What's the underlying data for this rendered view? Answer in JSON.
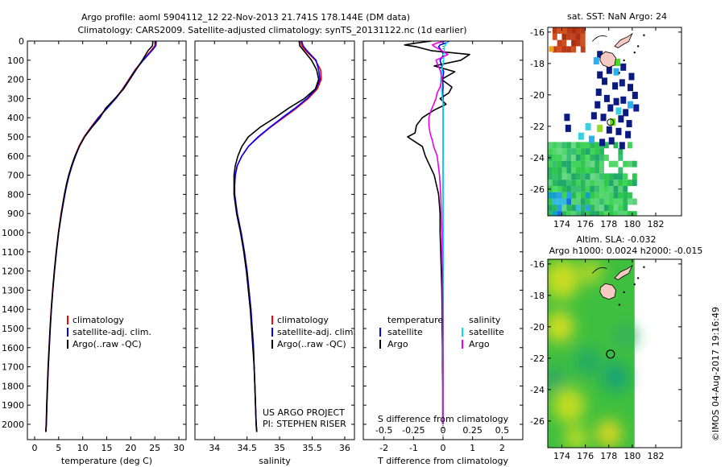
{
  "header": {
    "title_line1": "Argo profile: aoml 5904112_12 22-Nov-2013 21.741S 178.144E (DM data)",
    "title_line2": "Climatology: CARS2009. Satellite-adjusted climatology: synTS_20131122.nc (1d earlier)"
  },
  "legend": {
    "climatology": "climatology",
    "satellite_clim": "satellite-adj. clim.",
    "argo": "Argo(..raw -QC)",
    "temperature": "temperature",
    "salinity": "salinity",
    "satellite": "satellite",
    "argo_short": "Argo"
  },
  "credits": {
    "project": "US ARGO PROJECT",
    "pi": "PI: STEPHEN RISER",
    "stamp": "©IMOS 04-Aug-2017 19:16:49"
  },
  "maps": {
    "sst_title": "sat. SST: NaN Argo: 24",
    "sla_title": "Altim. SLA: -0.032",
    "sla_subtitle": "Argo h1000: 0.0024 h2000: -0.015",
    "xticks": [
      "174",
      "176",
      "178",
      "180",
      "182"
    ],
    "yticks": [
      "-16",
      "-18",
      "-20",
      "-22",
      "-24",
      "-26"
    ],
    "xrange": [
      172.8,
      184.2
    ],
    "yrange": [
      -27.7,
      -15.7
    ],
    "float_position": [
      178.144,
      -21.741
    ]
  },
  "colors": {
    "climatology": "#ff0000",
    "satellite": "#0000ff",
    "argo": "#000000",
    "s_satellite": "#00e5ee",
    "s_argo": "#ee00ee"
  },
  "chart_data": [
    {
      "type": "line",
      "panel": "temperature",
      "xlabel": "temperature (deg C)",
      "ylabel": "",
      "xlim": [
        -1.5,
        31.5
      ],
      "ylim": [
        2080,
        0
      ],
      "xticks": [
        0,
        5,
        10,
        15,
        20,
        25,
        30
      ],
      "yticks": [
        0,
        100,
        200,
        300,
        400,
        500,
        600,
        700,
        800,
        900,
        1000,
        1100,
        1200,
        1300,
        1400,
        1500,
        1600,
        1700,
        1800,
        1900,
        2000
      ],
      "depth": [
        0,
        25,
        50,
        100,
        150,
        200,
        250,
        300,
        350,
        400,
        450,
        500,
        550,
        600,
        650,
        700,
        750,
        800,
        900,
        1000,
        1100,
        1200,
        1300,
        1400,
        1500,
        1600,
        1700,
        1800,
        1900,
        2000,
        2040
      ],
      "series": [
        {
          "name": "climatology",
          "values": [
            25.1,
            25.0,
            24.2,
            22.5,
            20.9,
            19.6,
            18.3,
            16.8,
            15.0,
            13.2,
            11.7,
            10.3,
            9.2,
            8.4,
            7.7,
            7.1,
            6.6,
            6.2,
            5.5,
            4.95,
            4.5,
            4.1,
            3.75,
            3.45,
            3.2,
            3.0,
            2.8,
            2.65,
            2.5,
            2.4,
            2.3
          ]
        },
        {
          "name": "satellite-adj. clim.",
          "values": [
            25.3,
            25.2,
            24.4,
            22.6,
            21.0,
            19.7,
            18.4,
            16.9,
            15.1,
            13.3,
            11.8,
            10.4,
            9.3,
            8.5,
            7.8,
            7.2,
            6.7,
            6.3,
            5.6,
            5.0,
            4.55,
            4.15,
            3.8,
            3.5,
            3.25,
            3.05,
            2.85,
            2.7,
            2.55,
            2.45,
            2.35
          ]
        },
        {
          "name": "Argo(..raw -QC)",
          "values": [
            24.6,
            24.5,
            23.6,
            22.4,
            21.1,
            19.8,
            18.5,
            16.7,
            14.8,
            13.6,
            11.9,
            10.4,
            9.3,
            8.4,
            7.7,
            7.1,
            6.6,
            6.2,
            5.55,
            4.97,
            4.5,
            4.12,
            3.78,
            3.48,
            3.22,
            3.02,
            2.83,
            2.67,
            2.53,
            2.42,
            2.33
          ]
        }
      ]
    },
    {
      "type": "line",
      "panel": "salinity",
      "xlabel": "salinity",
      "ylabel": "",
      "xlim": [
        33.7,
        36.15
      ],
      "ylim": [
        2080,
        0
      ],
      "xticks": [
        34,
        34.5,
        35,
        35.5,
        36
      ],
      "xticklabels": [
        "34",
        "34.5",
        "35",
        "35.5",
        "36"
      ],
      "depth": [
        0,
        25,
        50,
        100,
        150,
        200,
        250,
        300,
        350,
        400,
        450,
        500,
        550,
        600,
        650,
        700,
        750,
        800,
        900,
        1000,
        1100,
        1200,
        1300,
        1400,
        1500,
        1600,
        1700,
        1800,
        1900,
        2000,
        2040
      ],
      "series": [
        {
          "name": "climatology",
          "values": [
            35.32,
            35.34,
            35.4,
            35.55,
            35.63,
            35.64,
            35.58,
            35.44,
            35.26,
            35.06,
            34.86,
            34.68,
            34.52,
            34.42,
            34.35,
            34.32,
            34.31,
            34.31,
            34.35,
            34.41,
            34.46,
            34.5,
            34.53,
            34.56,
            34.58,
            34.6,
            34.61,
            34.62,
            34.63,
            34.64,
            34.65
          ]
        },
        {
          "name": "satellite-adj. clim.",
          "values": [
            35.34,
            35.36,
            35.42,
            35.56,
            35.6,
            35.62,
            35.56,
            35.42,
            35.24,
            35.04,
            34.85,
            34.67,
            34.52,
            34.42,
            34.35,
            34.32,
            34.31,
            34.31,
            34.35,
            34.41,
            34.46,
            34.5,
            34.53,
            34.56,
            34.58,
            34.6,
            34.61,
            34.62,
            34.63,
            34.64,
            34.65
          ]
        },
        {
          "name": "Argo(..raw -QC)",
          "values": [
            35.3,
            35.31,
            35.37,
            35.49,
            35.57,
            35.6,
            35.55,
            35.38,
            35.14,
            34.93,
            34.7,
            34.52,
            34.42,
            34.36,
            34.32,
            34.3,
            34.3,
            34.3,
            34.34,
            34.4,
            34.45,
            34.49,
            34.52,
            34.55,
            34.57,
            34.59,
            34.61,
            34.62,
            34.63,
            34.64,
            34.65
          ]
        }
      ]
    },
    {
      "type": "line",
      "panel": "difference",
      "xlabel": "T difference from climatology",
      "x2label": "S difference from climatology",
      "ylabel": "",
      "xlim": [
        -2.7,
        2.7
      ],
      "x2lim": [
        -0.675,
        0.675
      ],
      "ylim": [
        2080,
        0
      ],
      "xticks": [
        -2,
        -1,
        0,
        1,
        2
      ],
      "x2ticks": [
        -0.5,
        -0.25,
        0,
        0.25,
        0.5
      ],
      "x2ticklabels": [
        "-0.5",
        "-0.25",
        "0",
        "0.25",
        "0.5"
      ],
      "depth": [
        0,
        10,
        20,
        30,
        50,
        70,
        100,
        130,
        160,
        200,
        240,
        270,
        300,
        330,
        360,
        400,
        440,
        480,
        500,
        520,
        550,
        600,
        700,
        800,
        900,
        1000,
        1100,
        1200,
        1300,
        1400,
        1500,
        1600,
        1700,
        1800,
        1900,
        2000
      ],
      "series": [
        {
          "name": "temperature satellite",
          "values": [
            0.2,
            0.1,
            -0.1,
            -0.15,
            -0.05,
            0.02,
            -0.1,
            -0.05,
            0.02,
            -0.01,
            0.0,
            -0.01,
            0.0,
            0.0,
            0.0,
            0.0,
            0.0,
            0.0,
            0.0,
            0.0,
            0.0,
            0.0,
            0.0,
            0.0,
            0.0,
            0.0,
            0.0,
            0.0,
            0.0,
            0.0,
            0.0,
            0.0,
            0.0,
            0.0,
            0.0,
            0.0
          ]
        },
        {
          "name": "temperature Argo",
          "values": [
            -0.4,
            -0.9,
            -1.3,
            -0.9,
            -0.4,
            0.9,
            0.6,
            -0.3,
            0.4,
            -0.05,
            0.3,
            0.2,
            -0.1,
            0.1,
            -0.3,
            -0.7,
            -0.9,
            -0.95,
            -1.2,
            -1.0,
            -0.7,
            -0.6,
            -0.3,
            -0.15,
            -0.1,
            -0.1,
            -0.08,
            -0.06,
            -0.04,
            -0.03,
            -0.03,
            -0.02,
            -0.02,
            -0.01,
            -0.01,
            -0.01
          ]
        },
        {
          "name": "salinity satellite",
          "values": [
            0.04,
            0.03,
            0.02,
            0.01,
            0.01,
            0.005,
            0.005,
            -0.005,
            -0.01,
            -0.02,
            -0.015,
            -0.01,
            -0.005,
            0.0,
            0.0,
            0.0,
            0.0,
            0.0,
            0.0,
            0.0,
            0.0,
            0.0,
            0.0,
            0.0,
            0.0,
            0.0,
            0.0,
            0.0,
            0.0,
            0.0,
            0.0,
            0.0,
            0.0,
            0.0,
            0.0,
            0.0
          ]
        },
        {
          "name": "salinity Argo",
          "values": [
            0.02,
            -0.05,
            -0.09,
            -0.07,
            -0.01,
            0.04,
            -0.06,
            -0.04,
            -0.02,
            -0.01,
            -0.025,
            -0.05,
            -0.06,
            -0.08,
            -0.1,
            -0.12,
            -0.12,
            -0.11,
            -0.1,
            -0.09,
            -0.08,
            -0.05,
            -0.03,
            -0.02,
            -0.015,
            -0.01,
            -0.008,
            -0.005,
            -0.004,
            -0.003,
            -0.002,
            -0.002,
            -0.001,
            -0.001,
            -0.001,
            0.0
          ]
        }
      ]
    }
  ]
}
